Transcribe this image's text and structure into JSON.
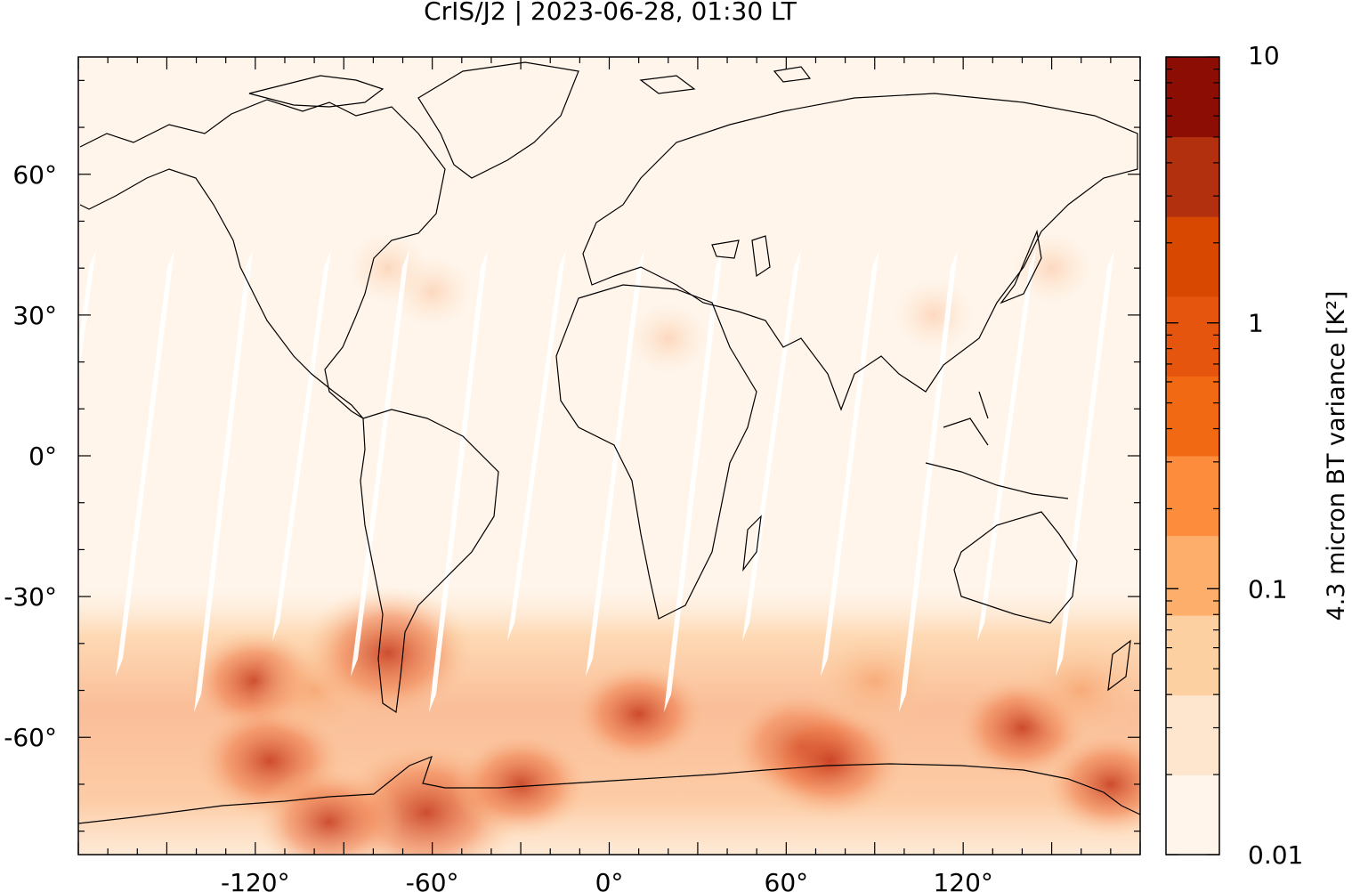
{
  "title": "CrIS/J2 | 2023-06-28, 01:30 LT",
  "map": {
    "projection": "equirectangular",
    "lon_range": [
      -180,
      180
    ],
    "lat_range": [
      -85,
      85
    ],
    "background_color": "#fff5eb",
    "coastline_color": "#000000"
  },
  "axes": {
    "x_ticks": [
      {
        "value": -120,
        "label": "-120°"
      },
      {
        "value": -60,
        "label": "-60°"
      },
      {
        "value": 0,
        "label": "0°"
      },
      {
        "value": 60,
        "label": "60°"
      },
      {
        "value": 120,
        "label": "120°"
      }
    ],
    "y_ticks": [
      {
        "value": 60,
        "label": "60°"
      },
      {
        "value": 30,
        "label": "30°"
      },
      {
        "value": 0,
        "label": "0°"
      },
      {
        "value": -30,
        "label": "-30°"
      },
      {
        "value": -60,
        "label": "-60°"
      }
    ]
  },
  "colorbar": {
    "title": "4.3 micron BT variance [K²]",
    "scale": "log",
    "range": [
      0.01,
      10
    ],
    "tick_labels": [
      {
        "value": 10,
        "label": "10"
      },
      {
        "value": 1,
        "label": "1"
      },
      {
        "value": 0.1,
        "label": "0.1"
      },
      {
        "value": 0.01,
        "label": "0.01"
      }
    ],
    "colors": [
      "#fff5eb",
      "#fee6ce",
      "#fdd0a2",
      "#fdae6b",
      "#fd8d3c",
      "#f16913",
      "#e6550d",
      "#d94801",
      "#b3300f",
      "#8c0d04"
    ]
  },
  "chart_data": {
    "type": "heatmap",
    "title": "CrIS/J2 | 2023-06-28, 01:30 LT",
    "colorbar_label": "4.3 micron BT variance [K²]",
    "zlim": [
      0.01,
      10
    ],
    "hotspots": [
      {
        "lon": -120,
        "lat": -48,
        "value": 1.5
      },
      {
        "lon": -115,
        "lat": -65,
        "value": 2.5
      },
      {
        "lon": -100,
        "lat": -50,
        "value": 1.0
      },
      {
        "lon": -75,
        "lat": -42,
        "value": 4.0
      },
      {
        "lon": -62,
        "lat": -76,
        "value": 6.0
      },
      {
        "lon": -95,
        "lat": -78,
        "value": 2.0
      },
      {
        "lon": -30,
        "lat": -70,
        "value": 1.5
      },
      {
        "lon": 10,
        "lat": -55,
        "value": 1.5
      },
      {
        "lon": 65,
        "lat": -62,
        "value": 2.0
      },
      {
        "lon": 75,
        "lat": -65,
        "value": 2.5
      },
      {
        "lon": 90,
        "lat": -48,
        "value": 1.0
      },
      {
        "lon": 140,
        "lat": -58,
        "value": 1.5
      },
      {
        "lon": 160,
        "lat": -50,
        "value": 1.2
      },
      {
        "lon": 170,
        "lat": -70,
        "value": 1.5
      }
    ]
  }
}
